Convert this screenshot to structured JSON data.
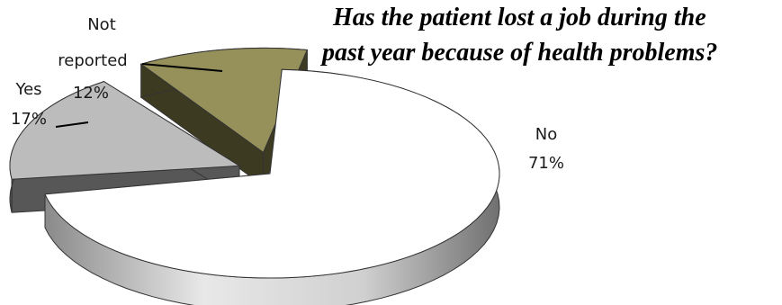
{
  "chart_data": {
    "type": "pie",
    "style": "3d-exploded",
    "title_lines": [
      "Has the patient lost a job during the",
      "past year because of health problems?"
    ],
    "slices": [
      {
        "label": "No",
        "label_lines": [
          "No"
        ],
        "value": 71,
        "value_label": "71%",
        "color": "#ffffff",
        "side_color": "#bdbdbd"
      },
      {
        "label": "Yes",
        "label_lines": [
          "Yes"
        ],
        "value": 17,
        "value_label": "17%",
        "color": "#bcbcbc",
        "side_color": "#575757"
      },
      {
        "label": "Not reported",
        "label_lines": [
          "Not",
          "reported"
        ],
        "value": 12,
        "value_label": "12%",
        "color": "#96905a",
        "side_color": "#3d3a22"
      }
    ]
  }
}
